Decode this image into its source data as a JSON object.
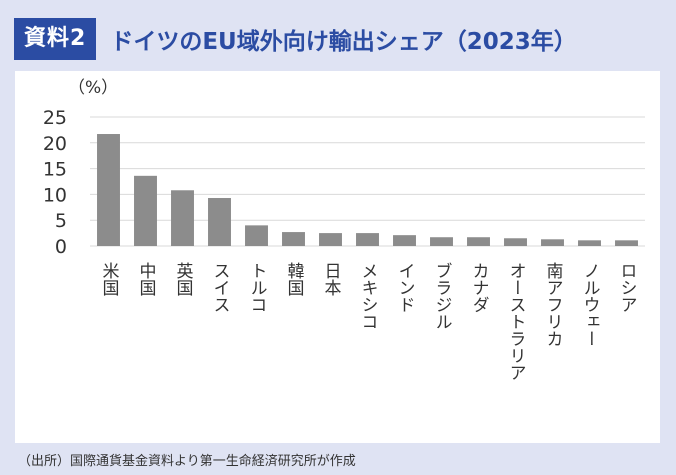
{
  "header": {
    "badge": "資料2",
    "title": "ドイツのEU域外向け輸出シェア（2023年）"
  },
  "source": "（出所）国際通貨基金資料より第一生命経済研究所が作成",
  "colors": {
    "badge_bg": "#2b4ca3",
    "title": "#2b4ca3",
    "background": "#dfe3f3",
    "bar": "#8c8c8c",
    "grid": "#d9d9d9"
  },
  "chart_data": {
    "type": "bar",
    "ylabel": "（%）",
    "ylim": [
      0,
      25
    ],
    "yticks": [
      0,
      5,
      10,
      15,
      20,
      25
    ],
    "grid": true,
    "categories": [
      "米国",
      "中国",
      "英国",
      "スイス",
      "トルコ",
      "韓国",
      "日本",
      "メキシコ",
      "インド",
      "ブラジル",
      "カナダ",
      "オーストラリア",
      "南アフリカ",
      "ノルウェー",
      "ロシア"
    ],
    "values": [
      21.7,
      13.6,
      10.8,
      9.3,
      4.0,
      2.7,
      2.5,
      2.5,
      2.1,
      1.7,
      1.7,
      1.5,
      1.3,
      1.1,
      1.1
    ]
  }
}
